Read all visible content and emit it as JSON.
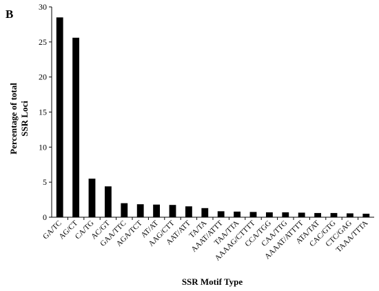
{
  "panel_label": "B",
  "chart_data": {
    "type": "bar",
    "title": "",
    "xlabel": "SSR Motif Type",
    "ylabel": [
      "Percentage of total",
      "SSR Loci"
    ],
    "ylim": [
      0,
      30
    ],
    "yticks": [
      0,
      5,
      10,
      15,
      20,
      25,
      30
    ],
    "grid": false,
    "legend": "none",
    "bar_color": "#000000",
    "categories": [
      "GA/TC",
      "AG/CT",
      "CA/TG",
      "AC/GT",
      "GAA/TTC",
      "AGA/TCT",
      "AT/AT",
      "AAG/CTT",
      "AAT/ATT",
      "TA/TA",
      "AAAT/ATTT",
      "TAA/TTA",
      "AAAAG/CTTTT",
      "CCA/TGG",
      "CAA/TTG",
      "AAAAT/ATTTT",
      "ATA/TAT",
      "CAC/GTG",
      "CTC/GAG",
      "TAAA/TTTA"
    ],
    "values": [
      28.5,
      25.6,
      5.5,
      4.4,
      2.0,
      1.85,
      1.8,
      1.75,
      1.55,
      1.3,
      0.85,
      0.8,
      0.75,
      0.7,
      0.7,
      0.65,
      0.6,
      0.6,
      0.55,
      0.5
    ]
  }
}
